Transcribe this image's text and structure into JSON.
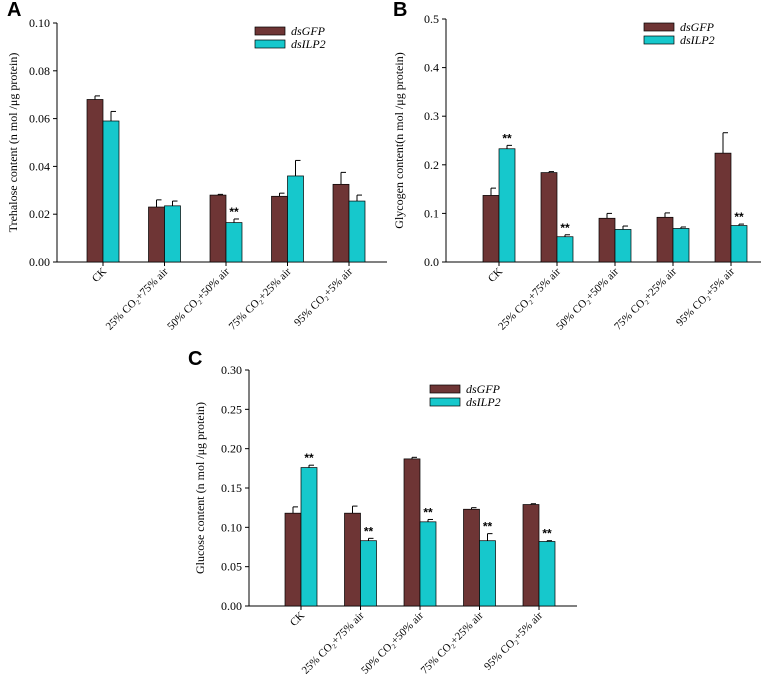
{
  "colors": {
    "dsGFP": "#6e3535",
    "dsILP2": "#16c8cc"
  },
  "chart_data": [
    {
      "type": "bar",
      "panel": "A",
      "ylabel": "Trehalose content (n mol /μg protein)",
      "ylim": [
        0,
        0.1
      ],
      "yticks": [
        "0.00",
        "0.02",
        "0.04",
        "0.06",
        "0.08",
        "0.10"
      ],
      "categories": [
        "CK",
        "25% CO₂+75% air",
        "50% CO₂+50% air",
        "75% CO₂+25% air",
        "95% CO₂+5% air"
      ],
      "series": [
        {
          "name": "dsGFP",
          "values": [
            0.068,
            0.023,
            0.028,
            0.0275,
            0.0325
          ],
          "errors": [
            0.0015,
            0.003,
            0.0003,
            0.0013,
            0.005
          ],
          "sig": [
            "",
            "",
            "",
            "",
            ""
          ]
        },
        {
          "name": "dsILP2",
          "values": [
            0.059,
            0.0235,
            0.0165,
            0.036,
            0.0255
          ],
          "errors": [
            0.004,
            0.002,
            0.0015,
            0.0065,
            0.0025
          ],
          "sig": [
            "",
            "",
            "**",
            "",
            ""
          ]
        }
      ]
    },
    {
      "type": "bar",
      "panel": "B",
      "ylabel": "Glycogen content(n mol /μg protein)",
      "ylim": [
        0,
        0.5
      ],
      "yticks": [
        "0.0",
        "0.1",
        "0.2",
        "0.3",
        "0.4",
        "0.5"
      ],
      "categories": [
        "CK",
        "25% CO₂+75% air",
        "50% CO₂+50% air",
        "75% CO₂+25% air",
        "95% CO₂+5% air"
      ],
      "series": [
        {
          "name": "dsGFP",
          "values": [
            0.137,
            0.184,
            0.09,
            0.092,
            0.224
          ],
          "errors": [
            0.015,
            0.002,
            0.01,
            0.009,
            0.042
          ],
          "sig": [
            "",
            "",
            "",
            "",
            ""
          ]
        },
        {
          "name": "dsILP2",
          "values": [
            0.233,
            0.052,
            0.067,
            0.069,
            0.075
          ],
          "errors": [
            0.007,
            0.004,
            0.007,
            0.003,
            0.003
          ],
          "sig": [
            "**",
            "**",
            "",
            "",
            "**"
          ]
        }
      ]
    },
    {
      "type": "bar",
      "panel": "C",
      "ylabel": "Glucose content (n mol /μg protein)",
      "ylim": [
        0,
        0.3
      ],
      "yticks": [
        "0.00",
        "0.05",
        "0.10",
        "0.15",
        "0.20",
        "0.25",
        "0.30"
      ],
      "categories": [
        "CK",
        "25% CO₂+75% air",
        "50% CO₂+50% air",
        "75% CO₂+25% air",
        "95% CO₂+5% air"
      ],
      "series": [
        {
          "name": "dsGFP",
          "values": [
            0.118,
            0.118,
            0.187,
            0.123,
            0.129
          ],
          "errors": [
            0.008,
            0.009,
            0.002,
            0.002,
            0.001
          ],
          "sig": [
            "",
            "",
            "",
            "",
            ""
          ]
        },
        {
          "name": "dsILP2",
          "values": [
            0.176,
            0.083,
            0.107,
            0.083,
            0.082
          ],
          "errors": [
            0.003,
            0.003,
            0.003,
            0.009,
            0.001
          ],
          "sig": [
            "**",
            "**",
            "**",
            "**",
            "**"
          ]
        }
      ]
    }
  ]
}
